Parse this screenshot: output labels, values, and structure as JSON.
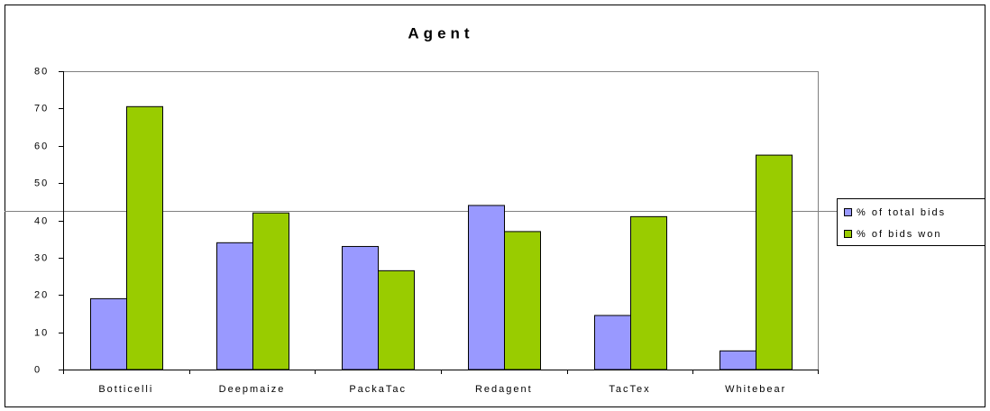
{
  "chart_data": {
    "type": "bar",
    "title": "Agent",
    "categories": [
      "Botticelli",
      "Deepmaize",
      "PackaTac",
      "Redagent",
      "TacTex",
      "Whitebear"
    ],
    "series": [
      {
        "name": "% of total bids",
        "color": "#9999ff",
        "values": [
          19,
          34,
          33,
          44,
          14.5,
          5
        ]
      },
      {
        "name": "% of bids won",
        "color": "#99cc00",
        "values": [
          70.5,
          42,
          26.5,
          37,
          41,
          57.5
        ]
      }
    ],
    "ylim": [
      0,
      80
    ],
    "yticks": [
      0,
      10,
      20,
      30,
      40,
      50,
      60,
      70,
      80
    ],
    "legend": "right"
  }
}
